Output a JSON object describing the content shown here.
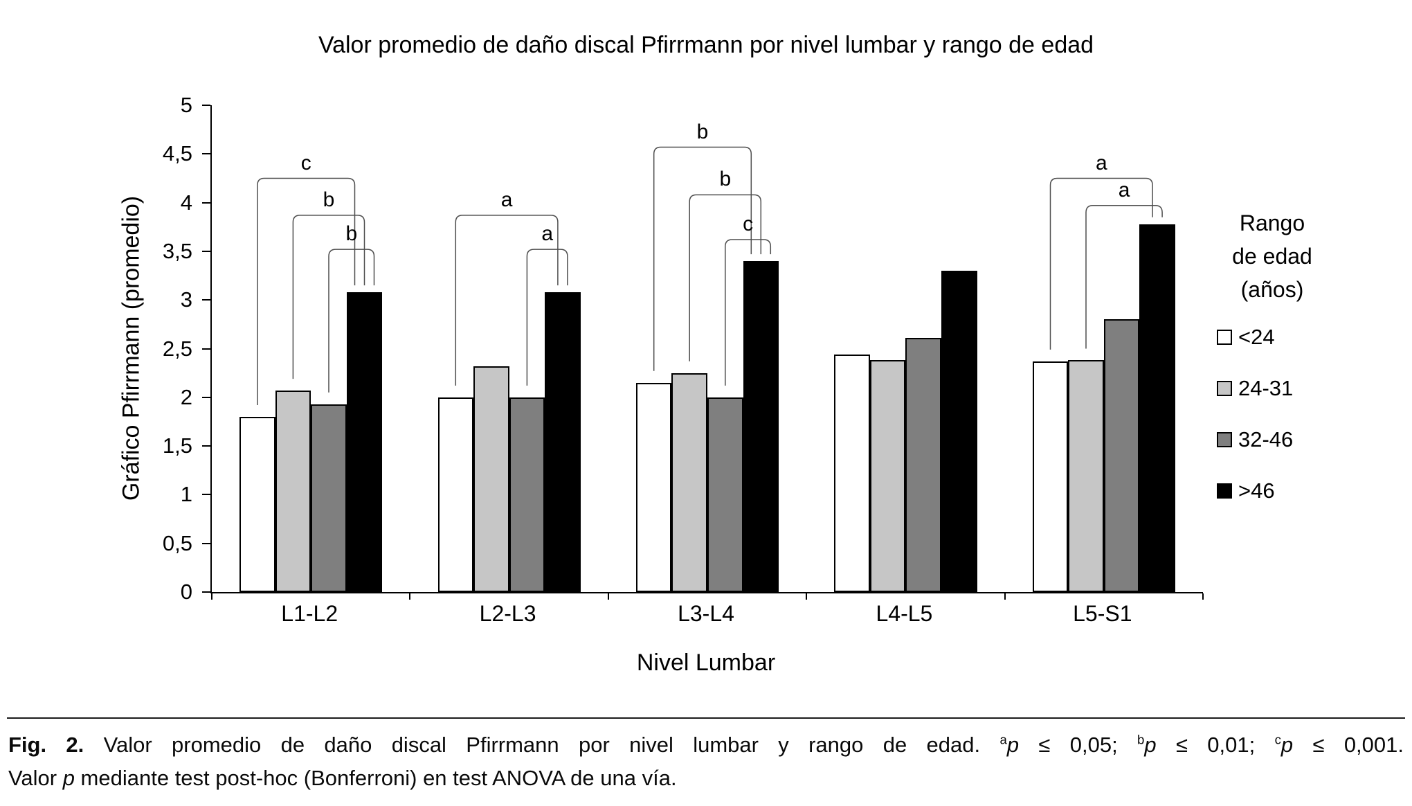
{
  "chart_data": {
    "type": "bar",
    "title": "Valor promedio de daño discal Pfirrmann por nivel lumbar y rango de edad",
    "xlabel": "Nivel Lumbar",
    "ylabel": "Gráfico Pfirrmann (promedio)",
    "ylim": [
      0,
      5
    ],
    "ytick_step": 0.5,
    "ytick_labels": [
      "0",
      "0,5",
      "1",
      "1,5",
      "2",
      "2,5",
      "3",
      "3,5",
      "4",
      "4,5",
      "5"
    ],
    "grid": false,
    "categories": [
      "L1-L2",
      "L2-L3",
      "L3-L4",
      "L4-L5",
      "L5-S1"
    ],
    "series": [
      {
        "name": "<24",
        "color": "#ffffff",
        "values": [
          1.8,
          2.0,
          2.15,
          2.44,
          2.37
        ]
      },
      {
        "name": "24-31",
        "color": "#c6c6c6",
        "values": [
          2.07,
          2.32,
          2.25,
          2.38,
          2.38
        ]
      },
      {
        "name": "32-46",
        "color": "#7f7f7f",
        "values": [
          1.93,
          2.0,
          2.0,
          2.61,
          2.8
        ]
      },
      {
        "name": ">46",
        "color": "#000000",
        "values": [
          3.08,
          3.08,
          3.4,
          3.3,
          3.78
        ]
      }
    ],
    "legend": {
      "position": "right",
      "title_lines": [
        "Rango",
        "de edad",
        "(años)"
      ]
    },
    "annotations": [
      {
        "group": 0,
        "from": 0,
        "to": 3,
        "top": 4.25,
        "label": "c"
      },
      {
        "group": 0,
        "from": 1,
        "to": 3,
        "top": 3.87,
        "label": "b"
      },
      {
        "group": 0,
        "from": 2,
        "to": 3,
        "top": 3.52,
        "label": "b"
      },
      {
        "group": 1,
        "from": 0,
        "to": 3,
        "top": 3.87,
        "label": "a"
      },
      {
        "group": 1,
        "from": 2,
        "to": 3,
        "top": 3.52,
        "label": "a"
      },
      {
        "group": 2,
        "from": 0,
        "to": 3,
        "top": 4.57,
        "label": "b"
      },
      {
        "group": 2,
        "from": 1,
        "to": 3,
        "top": 4.08,
        "label": "b"
      },
      {
        "group": 2,
        "from": 2,
        "to": 3,
        "top": 3.62,
        "label": "c"
      },
      {
        "group": 4,
        "from": 0,
        "to": 3,
        "top": 4.25,
        "label": "a"
      },
      {
        "group": 4,
        "from": 1,
        "to": 3,
        "top": 3.97,
        "label": "a"
      }
    ]
  },
  "caption": {
    "fig_label": "Fig. 2.",
    "body": "Valor promedio de daño discal Pfirrmann por nivel lumbar y rango de edad.",
    "stats": [
      {
        "sup": "a",
        "p": "p",
        "rest": " ≤ 0,05;"
      },
      {
        "sup": "b",
        "p": "p",
        "rest": " ≤ 0,01;"
      },
      {
        "sup": "c",
        "p": "p",
        "rest": " ≤ 0,001."
      }
    ],
    "line2": {
      "pre": "Valor ",
      "p": "p",
      "post": " mediante test post-hoc (Bonferroni) en test ANOVA de una vía."
    }
  }
}
